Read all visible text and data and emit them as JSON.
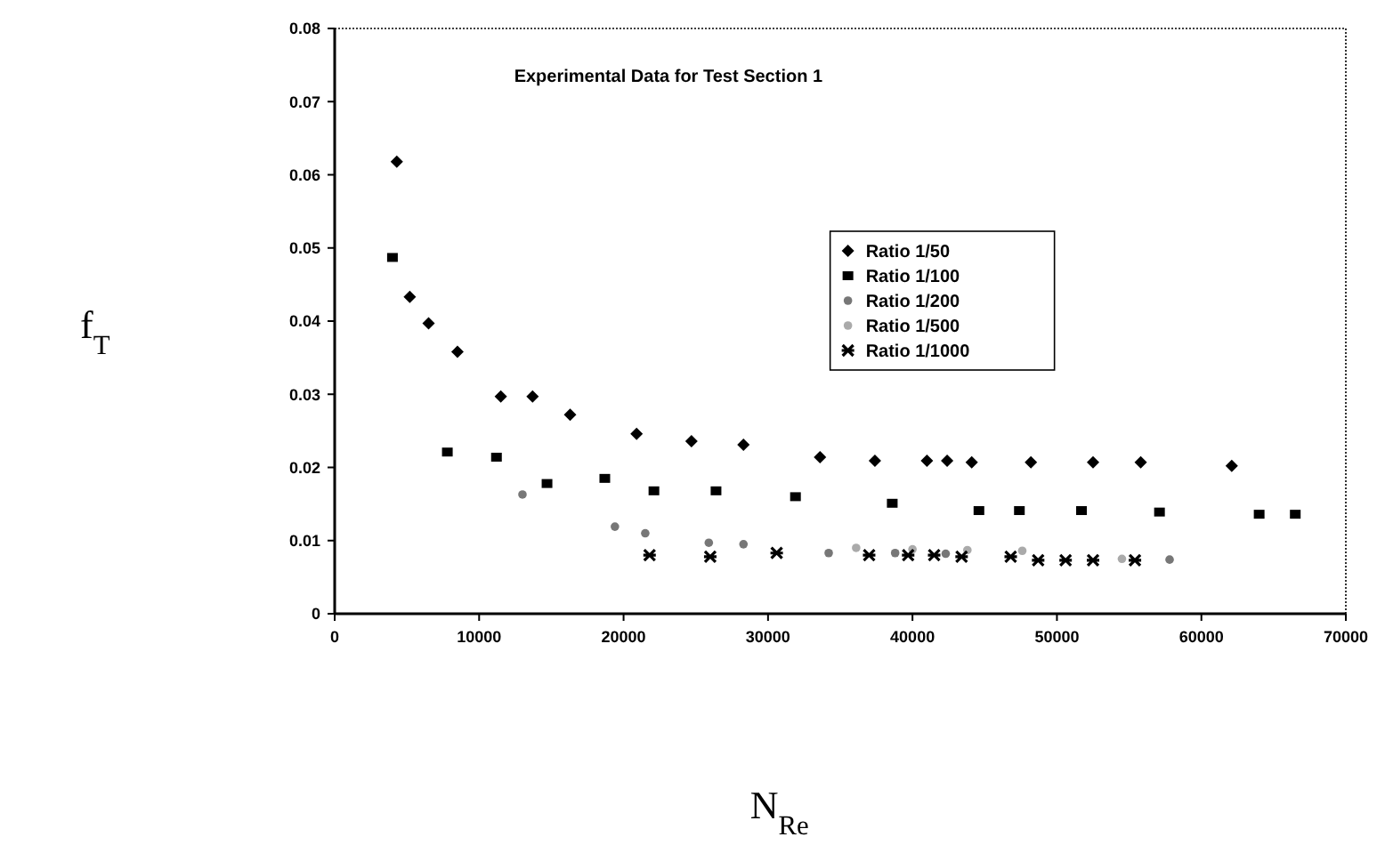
{
  "chart_data": {
    "type": "scatter",
    "title": "Experimental Data for Test Section 1",
    "xlabel": "N$_{Re}$",
    "ylabel": "f$_{T}$",
    "xlim": [
      0,
      70000
    ],
    "xticks": [
      0,
      10000,
      20000,
      30000,
      40000,
      50000,
      60000,
      70000
    ],
    "ylim": [
      0,
      0.08
    ],
    "yticks": [
      0,
      0.01,
      0.02,
      0.03,
      0.04,
      0.05,
      0.06,
      0.07,
      0.08
    ],
    "grid": false,
    "legend": "right",
    "series": [
      {
        "name": "Ratio 1/50",
        "color": "#000000",
        "marker": "diamond",
        "x": [
          4300,
          5200,
          6500,
          8500,
          11500,
          13700,
          16300,
          20900,
          24700,
          28300,
          33600,
          37400,
          41000,
          42400,
          44100,
          48200,
          52500,
          55800,
          62100
        ],
        "values": [
          0.0618,
          0.0433,
          0.0397,
          0.0358,
          0.0297,
          0.0297,
          0.0272,
          0.0246,
          0.0236,
          0.0231,
          0.0214,
          0.0209,
          0.0209,
          0.0209,
          0.0207,
          0.0207,
          0.0207,
          0.0207,
          0.0202
        ]
      },
      {
        "name": "Ratio 1/100",
        "color": "#000000",
        "marker": "square",
        "x": [
          4000,
          7800,
          11200,
          14700,
          18700,
          22100,
          26400,
          31900,
          38600,
          44600,
          47400,
          51700,
          57100,
          64000,
          66500
        ],
        "values": [
          0.0487,
          0.0221,
          0.0214,
          0.0178,
          0.0185,
          0.0168,
          0.0168,
          0.016,
          0.0151,
          0.0141,
          0.0141,
          0.0141,
          0.0139,
          0.0136,
          0.0136
        ]
      },
      {
        "name": "Ratio 1/200",
        "color": "#777777",
        "marker": "circle",
        "x": [
          13000,
          19400,
          21500,
          25900,
          28300,
          34200,
          38800,
          42300,
          57800
        ],
        "values": [
          0.0163,
          0.0119,
          0.011,
          0.0097,
          0.0095,
          0.0083,
          0.0083,
          0.0082,
          0.0074
        ]
      },
      {
        "name": "Ratio 1/500",
        "color": "#aaaaaa",
        "marker": "circle",
        "x": [
          36100,
          40000,
          43800,
          47600,
          54500
        ],
        "values": [
          0.009,
          0.0088,
          0.0087,
          0.0086,
          0.0075
        ]
      },
      {
        "name": "Ratio 1/1000",
        "color": "#000000",
        "marker": "cross",
        "x": [
          21800,
          26000,
          30600,
          37000,
          39700,
          41500,
          43400,
          46800,
          48700,
          50600,
          52500,
          55400
        ],
        "values": [
          0.008,
          0.0078,
          0.0083,
          0.008,
          0.008,
          0.008,
          0.0078,
          0.0078,
          0.0073,
          0.0073,
          0.0073,
          0.0073
        ]
      }
    ]
  }
}
